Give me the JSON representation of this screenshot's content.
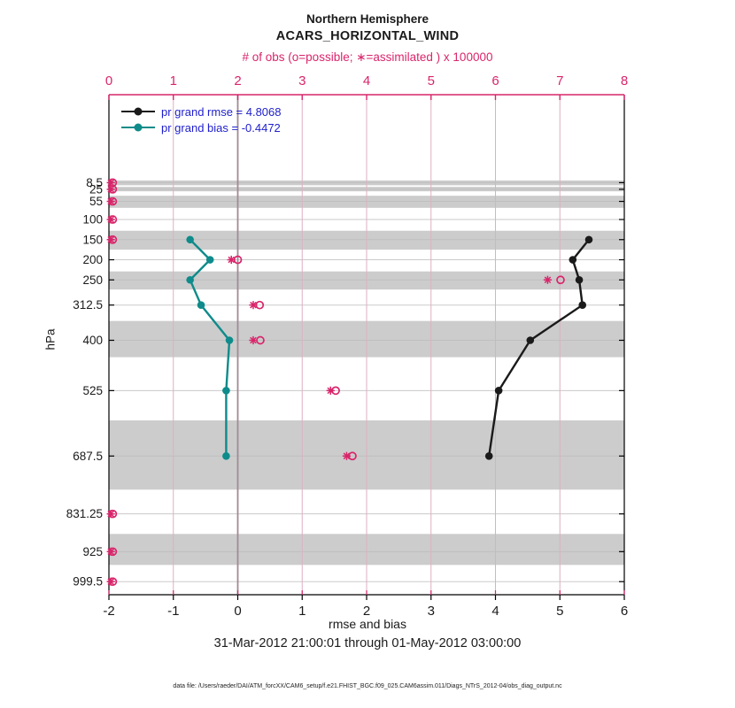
{
  "figure": {
    "title_line1": "Northern Hemisphere",
    "title_line2": "ACARS_HORIZONTAL_WIND",
    "subtitle": "# of obs (o=possible; ∗=assimilated ) x 100000",
    "xlabel": "rmse and bias",
    "ylabel": "hPa",
    "date_range": "31-Mar-2012 21:00:01 through 01-May-2012 03:00:00",
    "footer": "data file: /Users/raeder/DAI/ATM_forcXX/CAM6_setup/f.e21.FHIST_BGC.f09_025.CAM6assim.011/Diags_NTrS_2012-04/obs_diag_output.nc"
  },
  "legend": {
    "text_color": "#2121cc",
    "items": [
      {
        "label": "pr grand rmse = 4.8068",
        "color": "#1a1a1a"
      },
      {
        "label": "pr grand bias = -0.4472",
        "color": "#0f8b8b"
      }
    ]
  },
  "colors": {
    "obs_magenta": "#d9256b",
    "rmse_black": "#1a1a1a",
    "bias_teal": "#0f8b8b",
    "band_gray": "#cccccc",
    "grid_pink": "#ddafc1",
    "grid_gray": "#bdbdbd",
    "zero_line": "#a08a94",
    "axis_black": "#000000"
  },
  "chart_data": {
    "type": "line",
    "title": "Northern Hemisphere ACARS_HORIZONTAL_WIND",
    "orientation": "vertical profile, pressure increasing downward",
    "y_axis": {
      "label": "hPa",
      "ticks": [
        8.5,
        25,
        55,
        100,
        150,
        200,
        250,
        312.5,
        400,
        525,
        687.5,
        831.25,
        925,
        999.5
      ],
      "range": [
        -210,
        1032
      ]
    },
    "x_axis_bottom": {
      "label": "rmse and bias",
      "ticks": [
        -2,
        -1,
        0,
        1,
        2,
        3,
        4,
        5,
        6
      ],
      "range": [
        -2,
        6
      ],
      "color": "black"
    },
    "x_axis_top": {
      "label": "# of obs (o=possible; ∗=assimilated ) x 100000",
      "ticks": [
        0,
        1,
        2,
        3,
        4,
        5,
        6,
        7,
        8
      ],
      "range": [
        0,
        8
      ],
      "color": "magenta"
    },
    "zero_reference_x": 0,
    "gray_bands_hpa": [
      [
        3,
        15
      ],
      [
        19,
        30
      ],
      [
        41,
        71
      ],
      [
        128,
        175
      ],
      [
        229,
        274
      ],
      [
        352,
        442
      ],
      [
        599,
        771
      ],
      [
        881,
        958
      ]
    ],
    "series": [
      {
        "name": "pr grand rmse",
        "grand_value": 4.8068,
        "axis": "bottom",
        "color_key": "rmse_black",
        "levels_hpa": [
          150,
          200,
          250,
          312.5,
          400,
          525,
          687.5
        ],
        "values": [
          5.45,
          5.2,
          5.3,
          5.35,
          4.54,
          4.05,
          3.9
        ]
      },
      {
        "name": "pr grand bias",
        "grand_value": -0.4472,
        "axis": "bottom",
        "color_key": "bias_teal",
        "levels_hpa": [
          150,
          200,
          250,
          312.5,
          400,
          525,
          687.5
        ],
        "values": [
          -0.74,
          -0.43,
          -0.74,
          -0.57,
          -0.13,
          -0.18,
          -0.18
        ]
      }
    ],
    "obs_counts_x100000": {
      "axis": "top",
      "levels_hpa": [
        8.5,
        25,
        55,
        100,
        150,
        200,
        250,
        312.5,
        400,
        525,
        687.5,
        831.25,
        925,
        999.5
      ],
      "possible": [
        0.06,
        0.06,
        0.06,
        0.06,
        0.06,
        2.0,
        7.01,
        2.34,
        2.35,
        3.52,
        3.78,
        0.06,
        0.06,
        0.06
      ],
      "assimilated": [
        0.03,
        0.03,
        0.03,
        0.03,
        0.03,
        1.9,
        6.81,
        2.24,
        2.24,
        3.44,
        3.69,
        0.03,
        0.03,
        0.03
      ]
    }
  }
}
